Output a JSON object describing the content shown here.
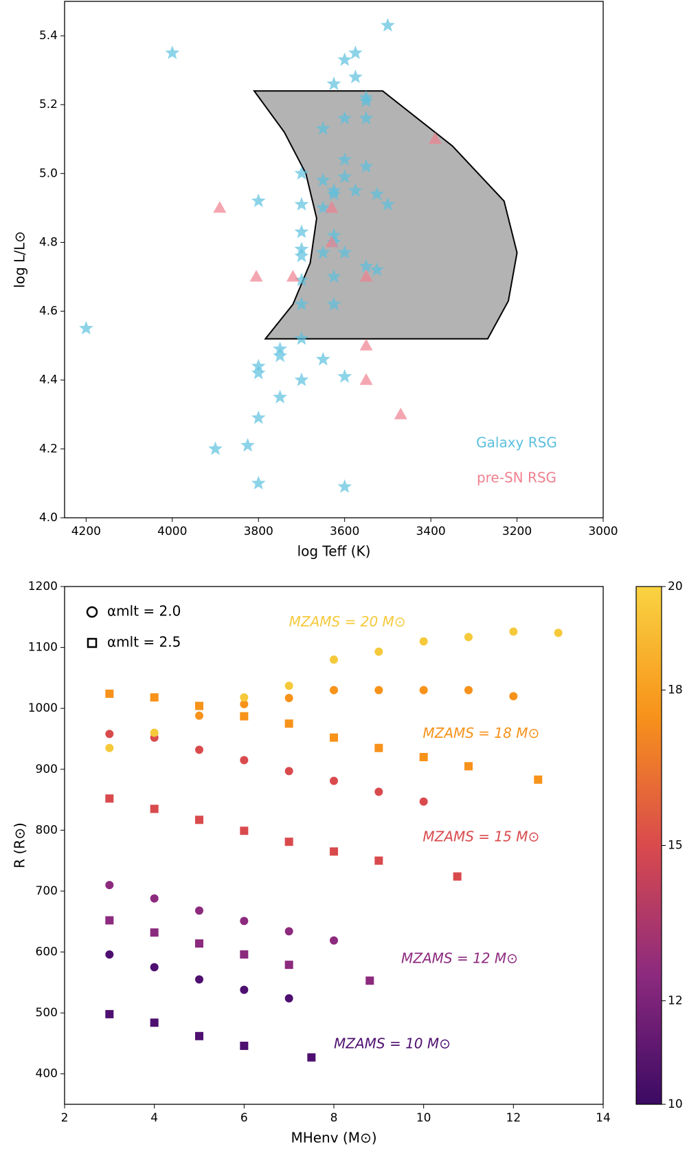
{
  "chart_data": [
    {
      "type": "scatter",
      "xlabel": "log Teff (K)",
      "ylabel": "log L/L⊙",
      "xlim": [
        4250,
        3000
      ],
      "ylim": [
        4.0,
        5.5
      ],
      "xticks": [
        4200,
        4000,
        3800,
        3600,
        3400,
        3200,
        3000
      ],
      "yticks": [
        {
          "value": 4,
          "label": "4.0"
        },
        4.2,
        4.4,
        4.6,
        4.8,
        {
          "value": 5,
          "label": "5.0"
        },
        5.2,
        5.4
      ],
      "region": {
        "color": "#b3b3b3",
        "x": [
          3810,
          3512,
          3350,
          3230,
          3200,
          3220,
          3268,
          3784,
          3720,
          3680,
          3665,
          3690,
          3740
        ],
        "y": [
          5.24,
          5.24,
          5.08,
          4.92,
          4.77,
          4.63,
          4.52,
          4.52,
          4.62,
          4.74,
          4.87,
          5.0,
          5.12
        ]
      },
      "legend": "lower right",
      "series": [
        {
          "name": "Galaxy RSG",
          "marker": "star",
          "color": "#5bc0de",
          "x": [
            3500,
            4000,
            3575,
            3600,
            3575,
            3625,
            3550,
            3550,
            3600,
            3550,
            3650,
            3600,
            3550,
            3700,
            3600,
            3650,
            3625,
            3575,
            3625,
            3525,
            3800,
            3700,
            3500,
            3650,
            3700,
            3625,
            3625,
            3700,
            3600,
            3700,
            3650,
            3550,
            3525,
            3700,
            3625,
            3700,
            3625,
            4200,
            3700,
            3750,
            3750,
            3650,
            3800,
            3800,
            3600,
            3700,
            3750,
            3800,
            3825,
            3900,
            3800,
            3600
          ],
          "values": [
            5.43,
            5.35,
            5.35,
            5.33,
            5.28,
            5.26,
            5.22,
            5.21,
            5.16,
            5.16,
            5.13,
            5.04,
            5.02,
            5.0,
            4.99,
            4.98,
            4.95,
            4.95,
            4.94,
            4.94,
            4.92,
            4.91,
            4.91,
            4.9,
            4.83,
            4.82,
            4.8,
            4.78,
            4.77,
            4.76,
            4.77,
            4.73,
            4.72,
            4.69,
            4.7,
            4.62,
            4.62,
            4.55,
            4.52,
            4.49,
            4.47,
            4.46,
            4.44,
            4.42,
            4.41,
            4.4,
            4.35,
            4.29,
            4.21,
            4.2,
            4.1,
            4.09
          ]
        },
        {
          "name": "pre-SN RSG",
          "marker": "triangle",
          "color": "#f0808f",
          "x": [
            3390,
            3890,
            3630,
            3630,
            3805,
            3720,
            3550,
            3550,
            3550,
            3470
          ],
          "values": [
            5.1,
            4.9,
            4.9,
            4.8,
            4.7,
            4.7,
            4.7,
            4.5,
            4.4,
            4.3
          ]
        }
      ]
    },
    {
      "type": "scatter",
      "xlabel": "MHenv (M⊙)",
      "ylabel": "R (R⊙)",
      "xlim": [
        2,
        14
      ],
      "ylim": [
        350,
        1200
      ],
      "xticks": [
        2,
        4,
        6,
        8,
        10,
        12,
        14
      ],
      "yticks": [
        400,
        500,
        600,
        700,
        800,
        900,
        1000,
        1100,
        1200
      ],
      "markers": [
        {
          "label": "αmlt = 2.0",
          "marker": "circle"
        },
        {
          "label": "αmlt = 2.5",
          "marker": "square"
        }
      ],
      "series": [
        {
          "marker": "circle",
          "color": "#4e0f70",
          "x": [
            3,
            4,
            5,
            6,
            7
          ],
          "values": [
            596,
            575,
            555,
            538,
            524
          ]
        },
        {
          "marker": "square",
          "color": "#4e0f70",
          "x": [
            3,
            4,
            5,
            6,
            7.5
          ],
          "values": [
            498,
            484,
            462,
            446,
            427
          ]
        },
        {
          "marker": "circle",
          "color": "#8c2a7e",
          "x": [
            3,
            4,
            5,
            6,
            7,
            8
          ],
          "values": [
            710,
            688,
            668,
            651,
            634,
            619
          ]
        },
        {
          "marker": "square",
          "color": "#8c2a7e",
          "x": [
            3,
            4,
            5,
            6,
            7,
            8.8
          ],
          "values": [
            652,
            632,
            614,
            596,
            579,
            553
          ]
        },
        {
          "marker": "circle",
          "color": "#d94a4d",
          "x": [
            3,
            4,
            5,
            6,
            7,
            8,
            9,
            10
          ],
          "values": [
            958,
            952,
            932,
            915,
            897,
            881,
            863,
            847
          ]
        },
        {
          "marker": "square",
          "color": "#d94a4d",
          "x": [
            3,
            4,
            5,
            6,
            7,
            8,
            9,
            10.75
          ],
          "values": [
            852,
            835,
            817,
            799,
            781,
            765,
            750,
            724
          ]
        },
        {
          "marker": "circle",
          "color": "#f7921a",
          "x": [
            5,
            6,
            7,
            8,
            9,
            10,
            11,
            12
          ],
          "values": [
            988,
            1007,
            1017,
            1030,
            1030,
            1030,
            1030,
            1020
          ]
        },
        {
          "marker": "square",
          "color": "#f7921a",
          "x": [
            3,
            4,
            5,
            6,
            7,
            8,
            9,
            10,
            11,
            12.55
          ],
          "values": [
            1024,
            1018,
            1004,
            987,
            975,
            952,
            935,
            920,
            905,
            883
          ]
        },
        {
          "marker": "circle",
          "color": "#f5c93a",
          "x": [
            3,
            4,
            6,
            7,
            8,
            9,
            10,
            11,
            12,
            13
          ],
          "values": [
            935,
            960,
            1018,
            1037,
            1080,
            1093,
            1110,
            1117,
            1126,
            1124
          ]
        }
      ],
      "annotations": [
        {
          "text": "MZAMS = 20 M⊙",
          "color": "#f5c93a"
        },
        {
          "text": "MZAMS = 18 M⊙",
          "color": "#f7921a"
        },
        {
          "text": "MZAMS = 15 M⊙",
          "color": "#d94a4d"
        },
        {
          "text": "MZAMS = 12 M⊙",
          "color": "#8c2a7e"
        },
        {
          "text": "MZAMS = 10 M⊙",
          "color": "#4e0f70"
        }
      ],
      "colorbar": {
        "clim": [
          10,
          20
        ],
        "ticks": [
          10,
          12,
          15,
          18,
          20
        ],
        "colors": [
          "#3b0a63",
          "#8c2a7e",
          "#d94a4d",
          "#f7921a",
          "#f9d342"
        ]
      }
    }
  ]
}
